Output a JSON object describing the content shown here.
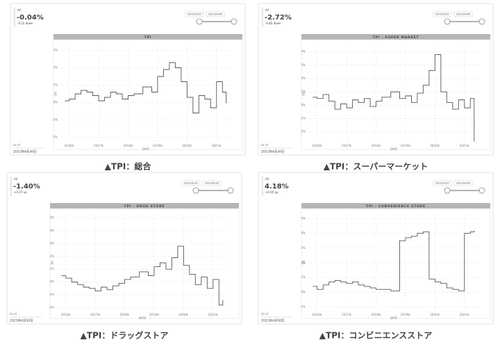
{
  "chart_data": [
    {
      "type": "line",
      "title": "TPI",
      "segment": "All",
      "kpi": "-0.04%",
      "change": "-0.52 down",
      "range_start": "2015/10/31",
      "range_end": "2021/04/30",
      "as_of": "As of",
      "date": "2021年4月30日",
      "caption": "▲TPI：総合",
      "xlabel": "DATE",
      "ylabel": "TPI",
      "color": "#555555",
      "grid": true,
      "x": [
        2015.85,
        2016.0,
        2016.2,
        2016.4,
        2016.6,
        2016.8,
        2017.0,
        2017.2,
        2017.4,
        2017.6,
        2017.8,
        2018.0,
        2018.2,
        2018.5,
        2018.8,
        2019.0,
        2019.2,
        2019.4,
        2019.6,
        2019.8,
        2020.0,
        2020.2,
        2020.4,
        2020.6,
        2020.8,
        2021.0,
        2021.2,
        2021.33
      ],
      "values": [
        0.1,
        0.2,
        0.5,
        0.7,
        0.6,
        0.4,
        0.1,
        0.3,
        0.6,
        0.5,
        0.2,
        0.4,
        0.5,
        0.9,
        0.6,
        1.5,
        1.9,
        2.3,
        2.0,
        1.2,
        0.3,
        -0.6,
        0.4,
        0.2,
        -0.3,
        1.2,
        0.6,
        -0.04
      ],
      "xlim": [
        2015.7,
        2021.5
      ],
      "xticks": [
        {
          "value": 2016,
          "label": "2016年"
        },
        {
          "value": 2017,
          "label": "2017年"
        },
        {
          "value": 2018,
          "label": "2018年"
        },
        {
          "value": 2019,
          "label": "2019年"
        },
        {
          "value": 2020,
          "label": "2020年"
        },
        {
          "value": 2021,
          "label": "2021年"
        }
      ],
      "ylim": [
        -2.3,
        3.3
      ],
      "yticks": [
        {
          "value": -2,
          "label": "-2%"
        },
        {
          "value": -1,
          "label": "-1%"
        },
        {
          "value": 0,
          "label": "0%"
        },
        {
          "value": 1,
          "label": "1%"
        },
        {
          "value": 2,
          "label": "2%"
        },
        {
          "value": 3,
          "label": "3%"
        }
      ]
    },
    {
      "type": "line",
      "title": "TPI - SUPER MARKET",
      "segment": "All",
      "kpi": "-2.72%",
      "change": "-0.82 down",
      "range_start": "2015/10/31",
      "range_end": "2021/04/30",
      "as_of": "As of",
      "date": "2021年4月30日",
      "caption": "▲TPI：スーパーマーケット",
      "xlabel": "DATE",
      "ylabel": "TPI",
      "color": "#555555",
      "grid": true,
      "x": [
        2015.85,
        2016.0,
        2016.2,
        2016.4,
        2016.6,
        2016.8,
        2017.0,
        2017.2,
        2017.4,
        2017.6,
        2017.8,
        2018.0,
        2018.2,
        2018.5,
        2018.8,
        2019.0,
        2019.2,
        2019.4,
        2019.6,
        2019.8,
        2020.0,
        2020.2,
        2020.4,
        2020.6,
        2020.8,
        2021.0,
        2021.2,
        2021.33
      ],
      "values": [
        0.6,
        0.5,
        0.8,
        0.3,
        -0.3,
        0.1,
        -0.2,
        0.4,
        0.2,
        0.5,
        -0.1,
        0.3,
        0.6,
        1.0,
        0.5,
        0.7,
        0.2,
        0.9,
        1.5,
        2.6,
        3.8,
        1.0,
        0.2,
        -0.3,
        0.4,
        -0.2,
        0.5,
        -2.72
      ],
      "xlim": [
        2015.7,
        2021.5
      ],
      "xticks": [
        {
          "value": 2016,
          "label": "2016年"
        },
        {
          "value": 2017,
          "label": "2017年"
        },
        {
          "value": 2018,
          "label": "2018年"
        },
        {
          "value": 2019,
          "label": "2019年"
        },
        {
          "value": 2020,
          "label": "2020年"
        },
        {
          "value": 2021,
          "label": "2021年"
        }
      ],
      "ylim": [
        -2.8,
        4.5
      ],
      "yticks": [
        {
          "value": -2,
          "label": "-2%"
        },
        {
          "value": -1,
          "label": "-1%"
        },
        {
          "value": 0,
          "label": "0%"
        },
        {
          "value": 1,
          "label": "1%"
        },
        {
          "value": 2,
          "label": "2%"
        },
        {
          "value": 3,
          "label": "3%"
        },
        {
          "value": 4,
          "label": "4%"
        }
      ]
    },
    {
      "type": "line",
      "title": "TPI - DRUG STORE",
      "segment": "All",
      "kpi": "-1.40%",
      "change": "+0.37 up",
      "range_start": "2015/10/31",
      "range_end": "2021/04/30",
      "as_of": "As of",
      "date": "2021年4月30日",
      "caption": "▲TPI：ドラッグストア",
      "xlabel": "DATE",
      "ylabel": "TPI",
      "color": "#555555",
      "grid": true,
      "x": [
        2015.85,
        2016.0,
        2016.2,
        2016.4,
        2016.6,
        2016.8,
        2017.0,
        2017.2,
        2017.4,
        2017.6,
        2017.8,
        2018.0,
        2018.2,
        2018.5,
        2018.8,
        2019.0,
        2019.2,
        2019.4,
        2019.6,
        2019.8,
        2020.0,
        2020.2,
        2020.4,
        2020.6,
        2020.8,
        2021.0,
        2021.2,
        2021.33
      ],
      "values": [
        0.5,
        0.3,
        0.0,
        -0.2,
        -0.4,
        -0.5,
        -0.7,
        -0.4,
        -0.6,
        -0.3,
        -0.1,
        0.2,
        0.4,
        0.8,
        0.5,
        1.2,
        1.5,
        1.0,
        1.9,
        2.8,
        1.3,
        0.6,
        -0.2,
        0.4,
        -0.5,
        0.2,
        -1.8,
        -1.4
      ],
      "xlim": [
        2015.7,
        2021.5
      ],
      "xticks": [
        {
          "value": 2016,
          "label": "2016年"
        },
        {
          "value": 2017,
          "label": "2017年"
        },
        {
          "value": 2018,
          "label": "2018年"
        },
        {
          "value": 2019,
          "label": "2019年"
        },
        {
          "value": 2020,
          "label": "2020年"
        },
        {
          "value": 2021,
          "label": "2021年"
        }
      ],
      "ylim": [
        -2.3,
        5.3
      ],
      "yticks": [
        {
          "value": -2,
          "label": "-2%"
        },
        {
          "value": -1,
          "label": "-1%"
        },
        {
          "value": 0,
          "label": "0%"
        },
        {
          "value": 1,
          "label": "1%"
        },
        {
          "value": 2,
          "label": "2%"
        },
        {
          "value": 3,
          "label": "3%"
        },
        {
          "value": 4,
          "label": "4%"
        },
        {
          "value": 5,
          "label": "5%"
        }
      ]
    },
    {
      "type": "line",
      "title": "TPI - CONVENIENCE STORE",
      "segment": "All",
      "kpi": "4.18%",
      "change": "+0.05 up",
      "range_start": "2015/10/31",
      "range_end": "2021/04/30",
      "as_of": "As of",
      "date": "2021年4月30日",
      "caption": "▲TPI：コンビニエンスストア",
      "xlabel": "DATE",
      "ylabel": "TPI",
      "color": "#555555",
      "grid": true,
      "x": [
        2015.85,
        2016.0,
        2016.2,
        2016.4,
        2016.6,
        2016.8,
        2017.0,
        2017.2,
        2017.4,
        2017.6,
        2017.8,
        2018.0,
        2018.2,
        2018.5,
        2018.8,
        2019.0,
        2019.2,
        2019.4,
        2019.6,
        2019.8,
        2020.0,
        2020.2,
        2020.4,
        2020.6,
        2020.8,
        2021.0,
        2021.2,
        2021.33
      ],
      "values": [
        0.4,
        0.2,
        0.5,
        0.7,
        0.8,
        0.7,
        0.6,
        0.7,
        0.5,
        0.4,
        0.3,
        0.2,
        0.2,
        0.1,
        3.5,
        3.7,
        3.8,
        4.0,
        4.1,
        0.9,
        0.7,
        0.6,
        0.3,
        0.2,
        0.1,
        4.0,
        4.1,
        4.18
      ],
      "xlim": [
        2015.7,
        2021.5
      ],
      "xticks": [
        {
          "value": 2016,
          "label": "2016年"
        },
        {
          "value": 2017,
          "label": "2017年"
        },
        {
          "value": 2018,
          "label": "2018年"
        },
        {
          "value": 2019,
          "label": "2019年"
        },
        {
          "value": 2020,
          "label": "2020年"
        },
        {
          "value": 2021,
          "label": "2021年"
        }
      ],
      "ylim": [
        -1.3,
        5.3
      ],
      "yticks": [
        {
          "value": -1,
          "label": "-1%"
        },
        {
          "value": 0,
          "label": "0%"
        },
        {
          "value": 1,
          "label": "1%"
        },
        {
          "value": 2,
          "label": "2%"
        },
        {
          "value": 3,
          "label": "3%"
        },
        {
          "value": 4,
          "label": "4%"
        },
        {
          "value": 5,
          "label": "5%"
        }
      ]
    }
  ]
}
